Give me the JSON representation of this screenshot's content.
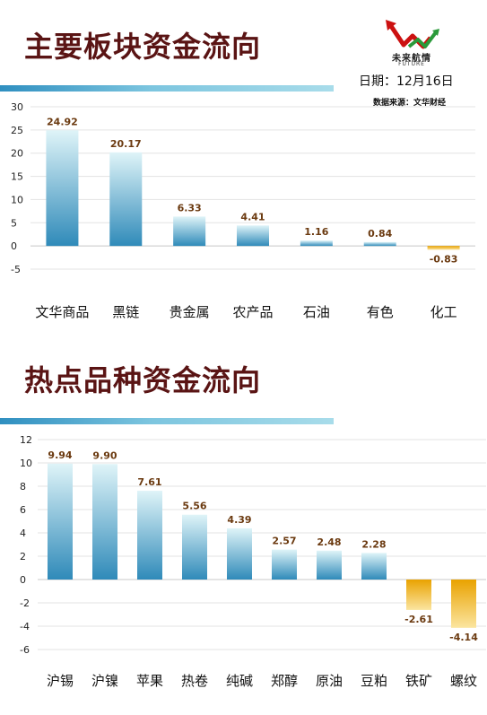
{
  "header": {
    "logo_name": "未来航情",
    "logo_sub": "FUTURE",
    "date": "日期：12月16日",
    "source": "数据来源：文华财经"
  },
  "colors": {
    "title": "#5a1414",
    "band_dark": "#2f8fc0",
    "band_light": "#a8dcea",
    "bar_pos_top": "#dff4f8",
    "bar_pos_bottom": "#2f8ab9",
    "bar_neg_top": "#e9a200",
    "bar_neg_bottom": "#fbe5a0",
    "value_label": "#6b3a10"
  },
  "icons": [
    "trend-arrow-logo-icon"
  ],
  "chart_data": [
    {
      "type": "bar",
      "title": "主要板块资金流向",
      "categories": [
        "文华商品",
        "黑链",
        "贵金属",
        "农产品",
        "石油",
        "有色",
        "化工"
      ],
      "values": [
        24.92,
        20.17,
        6.33,
        4.41,
        1.16,
        0.84,
        -0.83
      ],
      "value_labels": [
        "24.92",
        "20.17",
        "6.33",
        "4.41",
        "1.16",
        "0.84",
        "-0.83"
      ],
      "yticks": [
        "30",
        "25",
        "20",
        "15",
        "10",
        "5",
        "0",
        "-5"
      ],
      "ylim": [
        -5,
        30
      ],
      "grid": true,
      "xlabel": "",
      "ylabel": ""
    },
    {
      "type": "bar",
      "title": "热点品种资金流向",
      "categories": [
        "沪锡",
        "沪镍",
        "苹果",
        "热卷",
        "纯碱",
        "郑醇",
        "原油",
        "豆粕",
        "铁矿",
        "螺纹"
      ],
      "values": [
        9.94,
        9.9,
        7.61,
        5.56,
        4.39,
        2.57,
        2.48,
        2.28,
        -2.61,
        -4.14
      ],
      "value_labels": [
        "9.94",
        "9.90",
        "7.61",
        "5.56",
        "4.39",
        "2.57",
        "2.48",
        "2.28",
        "-2.61",
        "-4.14"
      ],
      "yticks": [
        "12",
        "10",
        "8",
        "6",
        "4",
        "2",
        "0",
        "-2",
        "-4",
        "-6"
      ],
      "ylim": [
        -6,
        12
      ],
      "grid": true,
      "xlabel": "",
      "ylabel": ""
    }
  ]
}
